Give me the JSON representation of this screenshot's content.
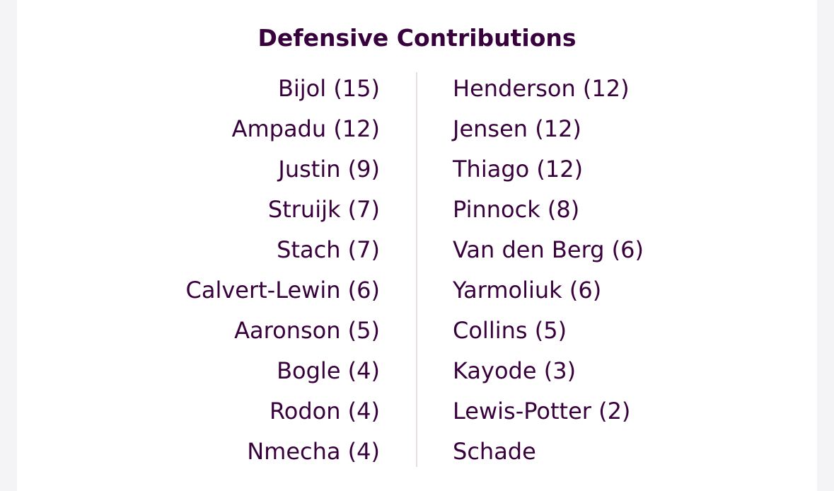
{
  "title": "Defensive Contributions",
  "colors": {
    "text": "#38003c",
    "divider": "#e6dde6",
    "background": "#ffffff"
  },
  "left_column": [
    "Bijol (15)",
    "Ampadu (12)",
    "Justin (9)",
    "Struijk (7)",
    "Stach (7)",
    "Calvert-Lewin (6)",
    "Aaronson (5)",
    "Bogle (4)",
    "Rodon (4)",
    "Nmecha (4)"
  ],
  "right_column": [
    "Henderson (12)",
    "Jensen (12)",
    "Thiago (12)",
    "Pinnock (8)",
    "Van den Berg (6)",
    "Yarmoliuk (6)",
    "Collins (5)",
    "Kayode (3)",
    "Lewis-Potter (2)",
    "Schade"
  ]
}
